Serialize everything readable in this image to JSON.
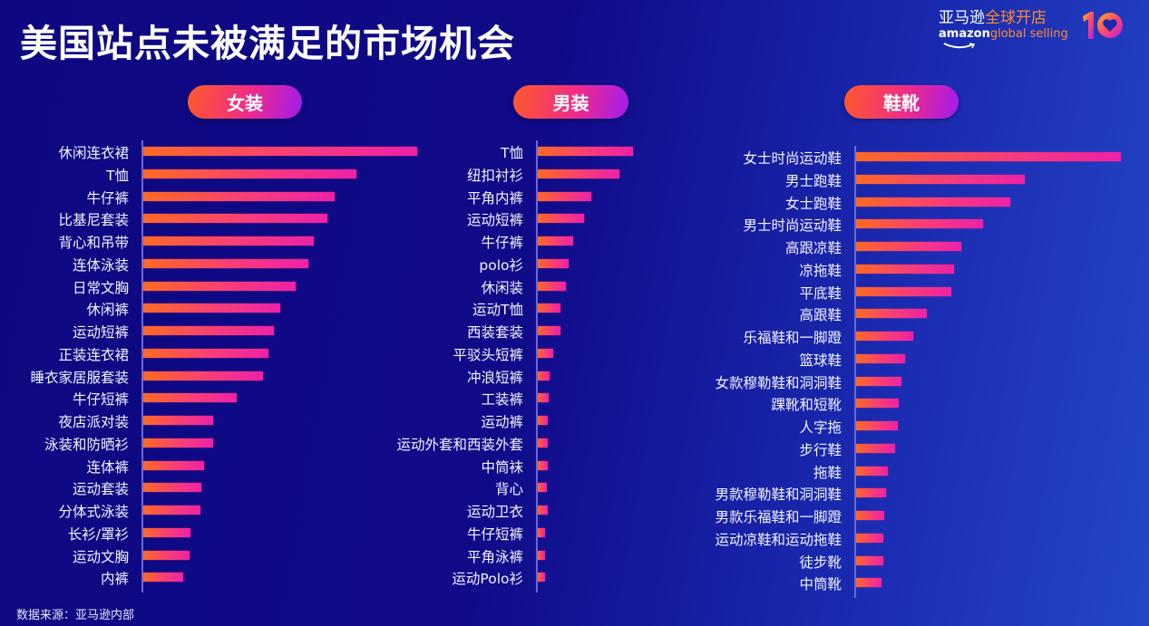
{
  "title": "美国站点未被满足的市场机会",
  "brand": {
    "cn_white": "亚马逊",
    "cn_orange": "全球开店",
    "en_white": "amazon",
    "en_orange": "global selling",
    "anniversary": "10"
  },
  "source": "数据来源：亚马逊内部",
  "colors": {
    "background_start": "#0d0880",
    "background_end": "#2446c8",
    "bar_start": "#ff6a22",
    "bar_end": "#ee21a8",
    "pill_start": "#ff5a2a",
    "pill_end": "#a01cf0",
    "brand_orange": "#ff8a2a"
  },
  "chart_data": [
    {
      "type": "bar",
      "orientation": "horizontal",
      "title": "女装",
      "xlabel": "",
      "ylabel": "",
      "grid": false,
      "note": "values are relative bar lengths in px (no axis scale shown)",
      "categories": [
        "休闲连衣裙",
        "T恤",
        "牛仔裤",
        "比基尼套装",
        "背心和吊带",
        "连体泳装",
        "日常文胸",
        "休闲裤",
        "运动短裤",
        "正装连衣裙",
        "睡衣家居服套装",
        "牛仔短裤",
        "夜店派对装",
        "泳装和防晒衫",
        "连体裤",
        "运动套装",
        "分体式泳装",
        "长衫/罩衫",
        "运动文胸",
        "内裤"
      ],
      "values": [
        302,
        235,
        211,
        203,
        188,
        182,
        168,
        151,
        144,
        138,
        132,
        103,
        77,
        77,
        67,
        64,
        63,
        52,
        51,
        44
      ]
    },
    {
      "type": "bar",
      "orientation": "horizontal",
      "title": "男装",
      "xlabel": "",
      "ylabel": "",
      "grid": false,
      "note": "values are relative bar lengths in px (no axis scale shown)",
      "categories": [
        "T恤",
        "纽扣衬衫",
        "平角内裤",
        "运动短裤",
        "牛仔裤",
        "polo衫",
        "休闲装",
        "运动T恤",
        "西装套装",
        "平驳头短裤",
        "冲浪短裤",
        "工装裤",
        "运动裤",
        "运动外套和西装外套",
        "中筒袜",
        "背心",
        "运动卫衣",
        "牛仔短裤",
        "平角泳裤",
        "运动Polo衫"
      ],
      "values": [
        105,
        90,
        59,
        51,
        39,
        34,
        31,
        25,
        25,
        17,
        13,
        12,
        11,
        11,
        11,
        10,
        11,
        8,
        8,
        8
      ]
    },
    {
      "type": "bar",
      "orientation": "horizontal",
      "title": "鞋靴",
      "xlabel": "",
      "ylabel": "",
      "grid": false,
      "note": "values are relative bar lengths in px (no axis scale shown)",
      "categories": [
        "女士时尚运动鞋",
        "男士跑鞋",
        "女士跑鞋",
        "男士时尚运动鞋",
        "高跟凉鞋",
        "凉拖鞋",
        "平底鞋",
        "高跟鞋",
        "乐福鞋和一脚蹬",
        "篮球鞋",
        "女款穆勒鞋和洞洞鞋",
        "踝靴和短靴",
        "人字拖",
        "步行鞋",
        "拖鞋",
        "男款穆勒鞋和洞洞鞋",
        "男款乐福鞋和一脚蹬",
        "运动凉鞋和运动拖鞋",
        "徒步靴",
        "中筒靴"
      ],
      "values": [
        292,
        186,
        170,
        140,
        116,
        108,
        105,
        78,
        63,
        54,
        50,
        47,
        46,
        43,
        35,
        33,
        31,
        30,
        30,
        28
      ]
    }
  ]
}
